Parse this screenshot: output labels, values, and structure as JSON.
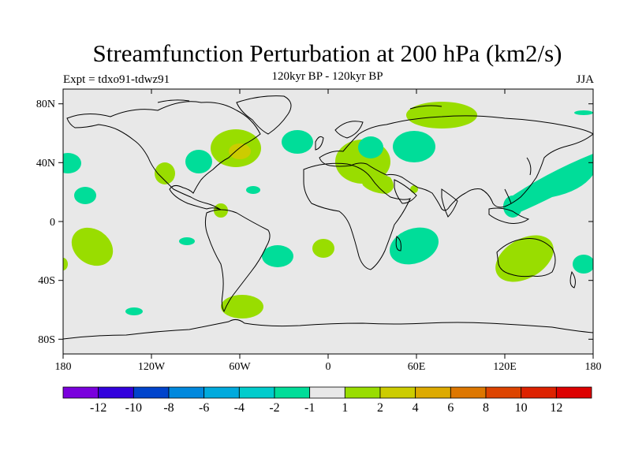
{
  "title": "Streamfunction Perturbation at 200 hPa (km2/s)",
  "expt_label": "Expt = tdxo91-tdwz91",
  "subtitle": "120kyr BP - 120kyr BP",
  "season": "JJA",
  "colors": {
    "ocean": "#e8e8e8",
    "neg1": "#00dd99",
    "pos1": "#99dd00",
    "pos2": "#cccc00"
  },
  "lat_ticks": [
    "80N",
    "40N",
    "0",
    "40S",
    "80S"
  ],
  "lon_ticks": [
    "180",
    "120W",
    "60W",
    "0",
    "60E",
    "120E",
    "180"
  ],
  "colorbar": {
    "colors": [
      "#7a00dd",
      "#3300dd",
      "#0044cc",
      "#0088dd",
      "#00aadd",
      "#00cccc",
      "#00dd99",
      "#e8e8e8",
      "#99dd00",
      "#cccc00",
      "#ddaa00",
      "#dd7700",
      "#dd4400",
      "#dd2200",
      "#dd0000"
    ],
    "labels": [
      "-12",
      "-10",
      "-8",
      "-6",
      "-4",
      "-2",
      "-1",
      "1",
      "2",
      "4",
      "6",
      "8",
      "10",
      "12"
    ]
  }
}
